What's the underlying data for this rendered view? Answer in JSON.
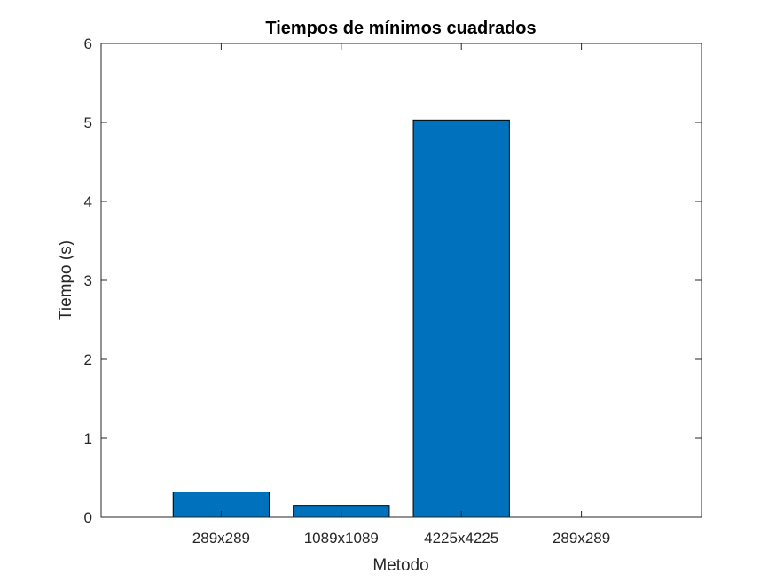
{
  "chart_data": {
    "type": "bar",
    "title": "Tiempos de mínimos cuadrados",
    "xlabel": "Metodo",
    "ylabel": "Tiempo (s)",
    "categories": [
      "289x289",
      "1089x1089",
      "4225x4225",
      "289x289"
    ],
    "values": [
      0.32,
      0.15,
      5.03,
      0
    ],
    "ylim": [
      0,
      6
    ],
    "yticks": [
      0,
      1,
      2,
      3,
      4,
      5,
      6
    ],
    "grid": false,
    "bar_color": "#0072BD",
    "axis_color": "#262626"
  }
}
